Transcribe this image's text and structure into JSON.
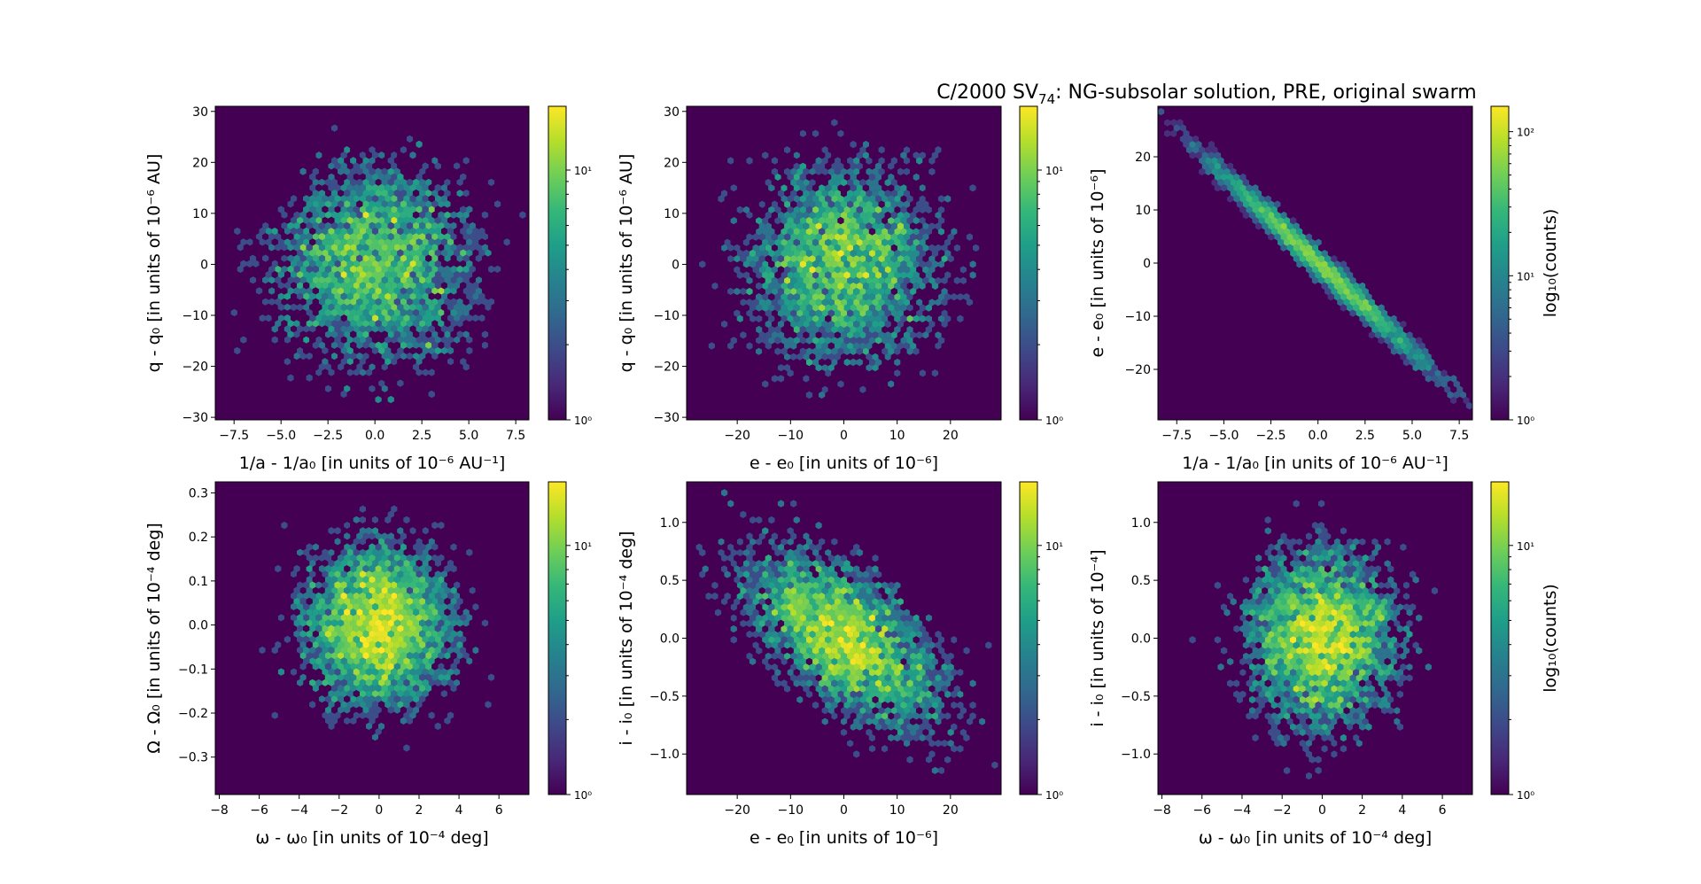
{
  "figure": {
    "suptitle_main": "C/2000 SV",
    "suptitle_sub": "74",
    "suptitle_rest": ": NG-subsolar solution, PRE, original swarm"
  },
  "colors": {
    "background": "#440154",
    "colormap": [
      "#440154",
      "#482878",
      "#3e4989",
      "#31688e",
      "#26828e",
      "#1f9e89",
      "#35b779",
      "#6ece58",
      "#b5de2b",
      "#fde725"
    ]
  },
  "chart_data": [
    {
      "type": "heatmap",
      "panel": "top-left",
      "xlabel": "1/a - 1/a₀ [in units of 10⁻⁶ AU⁻¹]",
      "ylabel": "q - q₀ [in units of 10⁻⁶ AU]",
      "xlim": [
        -8.5,
        8.2
      ],
      "ylim": [
        -30.5,
        31
      ],
      "xticks": [
        -7.5,
        -5.0,
        -2.5,
        0.0,
        2.5,
        5.0,
        7.5
      ],
      "xticklabels": [
        "−7.5",
        "−5.0",
        "−2.5",
        "0.0",
        "2.5",
        "5.0",
        "7.5"
      ],
      "yticks": [
        -30,
        -20,
        -10,
        0,
        10,
        20,
        30
      ],
      "yticklabels": [
        "−30",
        "−20",
        "−10",
        "0",
        "10",
        "20",
        "30"
      ],
      "colorbar": {
        "scale": "log",
        "range": [
          1,
          18
        ],
        "ticklabels": [
          "10⁰",
          "10¹"
        ],
        "label": ""
      },
      "distribution": {
        "x_mean": 0,
        "y_mean": 0,
        "x_sd": 3.0,
        "y_sd": 10.5,
        "corr": 0.0,
        "n": 5000
      }
    },
    {
      "type": "heatmap",
      "panel": "top-middle",
      "xlabel": "e - e₀ [in units of 10⁻⁶]",
      "ylabel": "q - q₀ [in units of 10⁻⁶ AU]",
      "xlim": [
        -29.5,
        29.5
      ],
      "ylim": [
        -30.5,
        31
      ],
      "xticks": [
        -20,
        -10,
        0,
        10,
        20
      ],
      "xticklabels": [
        "−20",
        "−10",
        "0",
        "10",
        "20"
      ],
      "yticks": [
        -30,
        -20,
        -10,
        0,
        10,
        20,
        30
      ],
      "yticklabels": [
        "−30",
        "−20",
        "−10",
        "0",
        "10",
        "20",
        "30"
      ],
      "colorbar": {
        "scale": "log",
        "range": [
          1,
          18
        ],
        "ticklabels": [
          "10⁰",
          "10¹"
        ],
        "label": ""
      },
      "distribution": {
        "x_mean": 0,
        "y_mean": 0,
        "x_sd": 10.0,
        "y_sd": 10.5,
        "corr": 0.0,
        "n": 5000
      }
    },
    {
      "type": "heatmap",
      "panel": "top-right",
      "xlabel": "1/a - 1/a₀ [in units of 10⁻⁶ AU⁻¹]",
      "ylabel": "e - e₀ [in units of 10⁻⁶]",
      "xlim": [
        -8.5,
        8.2
      ],
      "ylim": [
        -29.5,
        29.5
      ],
      "xticks": [
        -7.5,
        -5.0,
        -2.5,
        0.0,
        2.5,
        5.0,
        7.5
      ],
      "xticklabels": [
        "−7.5",
        "−5.0",
        "−2.5",
        "0.0",
        "2.5",
        "5.0",
        "7.5"
      ],
      "yticks": [
        -20,
        -10,
        0,
        10,
        20
      ],
      "yticklabels": [
        "−20",
        "−10",
        "0",
        "10",
        "20"
      ],
      "colorbar": {
        "scale": "log",
        "range": [
          1,
          150
        ],
        "ticklabels": [
          "10⁰",
          "10¹",
          "10²"
        ],
        "label": "log₁₀(counts)"
      },
      "distribution": {
        "x_mean": 0,
        "y_mean": 0,
        "x_sd": 3.0,
        "y_sd": 10.0,
        "corr": -0.99,
        "n": 5000
      }
    },
    {
      "type": "heatmap",
      "panel": "bottom-left",
      "xlabel": "ω - ω₀ [in units of 10⁻⁴ deg]",
      "ylabel": "Ω - Ω₀ [in units of 10⁻⁴ deg]",
      "xlim": [
        -8.2,
        7.5
      ],
      "ylim": [
        -0.385,
        0.325
      ],
      "xticks": [
        -8,
        -6,
        -4,
        -2,
        0,
        2,
        4,
        6
      ],
      "xticklabels": [
        "−8",
        "−6",
        "−4",
        "−2",
        "0",
        "2",
        "4",
        "6"
      ],
      "yticks": [
        -0.3,
        -0.2,
        -0.1,
        0.0,
        0.1,
        0.2,
        0.3
      ],
      "yticklabels": [
        "−0.3",
        "−0.2",
        "−0.1",
        "0.0",
        "0.1",
        "0.2",
        "0.3"
      ],
      "colorbar": {
        "scale": "log",
        "range": [
          1,
          18
        ],
        "ticklabels": [
          "10⁰",
          "10¹"
        ],
        "label": ""
      },
      "distribution": {
        "x_mean": 0,
        "y_mean": 0,
        "x_sd": 2.0,
        "y_sd": 0.1,
        "corr": 0.0,
        "n": 5000
      }
    },
    {
      "type": "heatmap",
      "panel": "bottom-middle",
      "xlabel": "e - e₀ [in units of 10⁻⁶]",
      "ylabel": "i - i₀ [in units of 10⁻⁴ deg]",
      "xlim": [
        -29.5,
        29.5
      ],
      "ylim": [
        -1.35,
        1.35
      ],
      "xticks": [
        -20,
        -10,
        0,
        10,
        20
      ],
      "xticklabels": [
        "−20",
        "−10",
        "0",
        "10",
        "20"
      ],
      "yticks": [
        -1.0,
        -0.5,
        0.0,
        0.5,
        1.0
      ],
      "yticklabels": [
        "−1.0",
        "−0.5",
        "0.0",
        "0.5",
        "1.0"
      ],
      "colorbar": {
        "scale": "log",
        "range": [
          1,
          18
        ],
        "ticklabels": [
          "10⁰",
          "10¹"
        ],
        "label": ""
      },
      "distribution": {
        "x_mean": 0,
        "y_mean": 0,
        "x_sd": 10.0,
        "y_sd": 0.42,
        "corr": -0.6,
        "n": 5000
      }
    },
    {
      "type": "heatmap",
      "panel": "bottom-right",
      "xlabel": "ω - ω₀ [in units of 10⁻⁴ deg]",
      "ylabel": "i - i₀ [in units of 10⁻⁴]",
      "xlim": [
        -8.2,
        7.5
      ],
      "ylim": [
        -1.35,
        1.35
      ],
      "xticks": [
        -8,
        -6,
        -4,
        -2,
        0,
        2,
        4,
        6
      ],
      "xticklabels": [
        "−8",
        "−6",
        "−4",
        "−2",
        "0",
        "2",
        "4",
        "6"
      ],
      "yticks": [
        -1.0,
        -0.5,
        0.0,
        0.5,
        1.0
      ],
      "yticklabels": [
        "−1.0",
        "−0.5",
        "0.0",
        "0.5",
        "1.0"
      ],
      "colorbar": {
        "scale": "log",
        "range": [
          1,
          18
        ],
        "ticklabels": [
          "10⁰",
          "10¹"
        ],
        "label": "log₁₀(counts)"
      },
      "distribution": {
        "x_mean": 0,
        "y_mean": 0,
        "x_sd": 2.0,
        "y_sd": 0.42,
        "corr": 0.0,
        "n": 5000
      }
    }
  ]
}
